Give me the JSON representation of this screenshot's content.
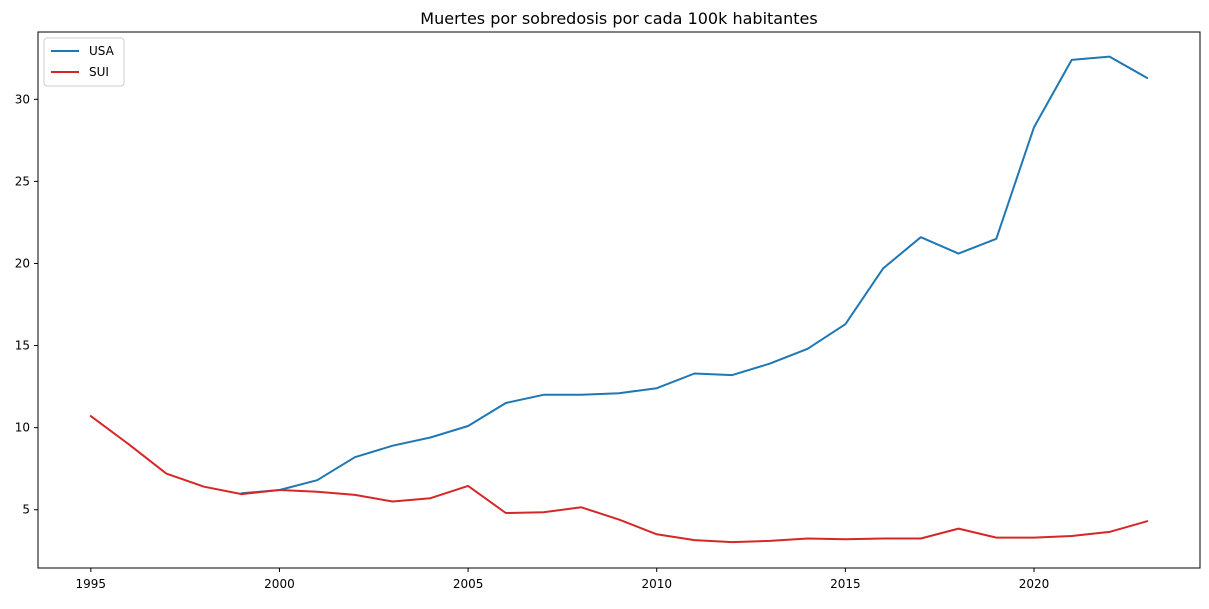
{
  "chart_data": {
    "type": "line",
    "title": "Muertes por sobredosis por cada 100k habitantes",
    "xlabel": "",
    "ylabel": "",
    "xlim": [
      1993.6,
      2024.4
    ],
    "ylim": [
      1.45,
      34.1
    ],
    "xticks": [
      1995,
      2000,
      2005,
      2010,
      2015,
      2020
    ],
    "yticks": [
      5,
      10,
      15,
      20,
      25,
      30
    ],
    "grid": false,
    "legend": "top-left",
    "series": [
      {
        "name": "USA",
        "color": "#1f77b4",
        "x": [
          1999,
          2000,
          2001,
          2002,
          2003,
          2004,
          2005,
          2006,
          2007,
          2008,
          2009,
          2010,
          2011,
          2012,
          2013,
          2014,
          2015,
          2016,
          2017,
          2018,
          2019,
          2020,
          2021,
          2022,
          2023
        ],
        "y": [
          6.0,
          6.2,
          6.8,
          8.2,
          8.9,
          9.4,
          10.1,
          11.5,
          12.0,
          12.0,
          12.1,
          12.4,
          13.3,
          13.2,
          13.9,
          14.8,
          16.3,
          19.7,
          21.6,
          20.6,
          21.5,
          28.3,
          32.4,
          32.6,
          31.3
        ]
      },
      {
        "name": "SUI",
        "color": "#d62728",
        "x": [
          1995,
          1996,
          1997,
          1998,
          1999,
          2000,
          2001,
          2002,
          2003,
          2004,
          2005,
          2006,
          2007,
          2008,
          2009,
          2010,
          2011,
          2012,
          2013,
          2014,
          2015,
          2016,
          2017,
          2018,
          2019,
          2020,
          2021,
          2022,
          2023
        ],
        "y": [
          10.7,
          9.0,
          7.2,
          6.4,
          5.95,
          6.2,
          6.1,
          5.9,
          5.5,
          5.7,
          6.45,
          4.8,
          4.85,
          5.15,
          4.4,
          3.5,
          3.15,
          3.03,
          3.1,
          3.25,
          3.2,
          3.25,
          3.25,
          3.85,
          3.3,
          3.3,
          3.4,
          3.65,
          4.3
        ]
      }
    ]
  }
}
